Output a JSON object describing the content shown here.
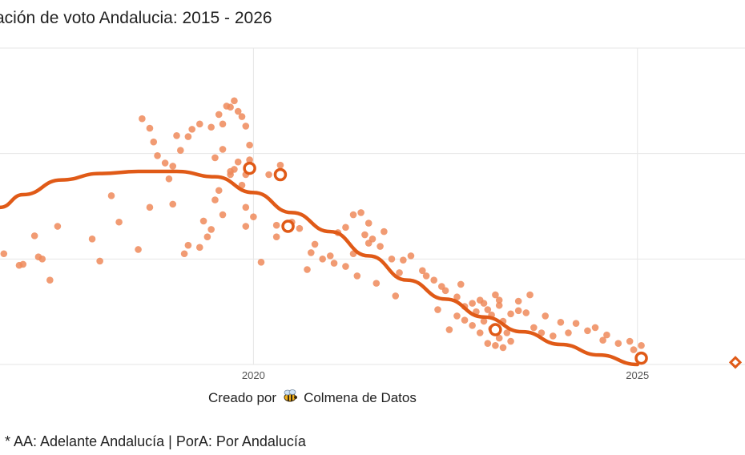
{
  "title": "ación de voto Andalucia: 2015 - 2026",
  "credit": {
    "prefix": "Creado por",
    "icon": "bee-icon",
    "name": "Colmena de Datos"
  },
  "footnote": "* AA: Adelante Andalucía | PorA: Por Andalucía",
  "colors": {
    "series": "#e05a17",
    "points": "#ee8a5a",
    "grid": "#e6e6e6"
  },
  "chart_data": {
    "type": "scatter",
    "x_tick_labels": [
      "2020",
      "2025"
    ],
    "xlim": [
      2016.7,
      2026.4
    ],
    "ylim": [
      0,
      30
    ],
    "grid": true,
    "series": [
      {
        "kind": "polls",
        "points": [
          [
            2016.75,
            10.5
          ],
          [
            2016.95,
            9.4
          ],
          [
            2017.15,
            12.2
          ],
          [
            2017.2,
            10.2
          ],
          [
            2017.0,
            9.5
          ],
          [
            2017.35,
            8.0
          ],
          [
            2017.25,
            10.0
          ],
          [
            2017.45,
            13.1
          ],
          [
            2017.9,
            11.9
          ],
          [
            2018.0,
            9.8
          ],
          [
            2018.15,
            16.0
          ],
          [
            2018.25,
            13.5
          ],
          [
            2018.5,
            10.9
          ],
          [
            2018.65,
            14.9
          ],
          [
            2018.9,
            17.6
          ],
          [
            2018.95,
            15.2
          ],
          [
            2019.1,
            10.5
          ],
          [
            2019.15,
            11.3
          ],
          [
            2019.3,
            11.1
          ],
          [
            2019.35,
            13.6
          ],
          [
            2019.4,
            12.1
          ],
          [
            2019.45,
            12.8
          ],
          [
            2018.7,
            21.1
          ],
          [
            2018.75,
            19.8
          ],
          [
            2018.85,
            19.1
          ],
          [
            2018.95,
            18.8
          ],
          [
            2019.05,
            20.3
          ],
          [
            2019.0,
            21.7
          ],
          [
            2019.15,
            21.6
          ],
          [
            2019.2,
            22.3
          ],
          [
            2019.3,
            22.8
          ],
          [
            2019.45,
            22.5
          ],
          [
            2018.55,
            23.3
          ],
          [
            2018.65,
            22.4
          ],
          [
            2019.55,
            23.7
          ],
          [
            2019.6,
            22.8
          ],
          [
            2019.65,
            24.5
          ],
          [
            2019.7,
            24.4
          ],
          [
            2019.75,
            25.0
          ],
          [
            2019.8,
            24.0
          ],
          [
            2019.85,
            23.5
          ],
          [
            2019.9,
            22.6
          ],
          [
            2019.95,
            20.8
          ],
          [
            2019.8,
            19.2
          ],
          [
            2019.7,
            18.3
          ],
          [
            2019.5,
            19.6
          ],
          [
            2019.75,
            18.5
          ],
          [
            2019.6,
            20.4
          ],
          [
            2019.9,
            18.0
          ],
          [
            2019.95,
            19.4
          ],
          [
            2019.7,
            18.0
          ],
          [
            2019.85,
            17.0
          ],
          [
            2019.55,
            16.5
          ],
          [
            2019.6,
            14.2
          ],
          [
            2020.0,
            14.0
          ],
          [
            2020.2,
            18.0
          ],
          [
            2020.35,
            18.9
          ],
          [
            2019.9,
            13.1
          ],
          [
            2020.3,
            12.1
          ],
          [
            2020.6,
            12.9
          ],
          [
            2019.5,
            15.6
          ],
          [
            2019.9,
            14.9
          ],
          [
            2020.5,
            13.5
          ],
          [
            2020.75,
            10.6
          ],
          [
            2020.9,
            10.0
          ],
          [
            2021.05,
            9.6
          ],
          [
            2021.2,
            9.3
          ],
          [
            2021.35,
            8.4
          ],
          [
            2021.6,
            7.7
          ],
          [
            2021.85,
            6.5
          ],
          [
            2021.9,
            8.7
          ],
          [
            2021.5,
            11.5
          ],
          [
            2020.1,
            9.7
          ],
          [
            2020.3,
            13.2
          ],
          [
            2021.0,
            10.3
          ],
          [
            2020.7,
            9.0
          ],
          [
            2021.3,
            10.5
          ],
          [
            2021.45,
            12.3
          ],
          [
            2021.55,
            11.9
          ],
          [
            2021.65,
            11.2
          ],
          [
            2021.7,
            12.6
          ],
          [
            2021.8,
            10.0
          ],
          [
            2022.05,
            10.3
          ],
          [
            2022.25,
            8.4
          ],
          [
            2022.5,
            7.0
          ],
          [
            2022.4,
            5.2
          ],
          [
            2022.55,
            3.3
          ],
          [
            2022.65,
            4.6
          ],
          [
            2022.75,
            4.2
          ],
          [
            2022.85,
            3.7
          ],
          [
            2023.0,
            5.8
          ],
          [
            2023.15,
            6.6
          ],
          [
            2023.05,
            5.2
          ],
          [
            2023.2,
            6.1
          ],
          [
            2023.35,
            4.8
          ],
          [
            2023.45,
            5.1
          ],
          [
            2023.55,
            4.9
          ],
          [
            2023.65,
            3.5
          ],
          [
            2023.75,
            3.0
          ],
          [
            2023.9,
            2.7
          ],
          [
            2024.1,
            3.0
          ],
          [
            2024.35,
            3.2
          ],
          [
            2024.55,
            2.3
          ],
          [
            2024.75,
            2.0
          ],
          [
            2024.95,
            1.4
          ],
          [
            2025.05,
            1.8
          ],
          [
            2022.85,
            5.8
          ],
          [
            2022.95,
            6.1
          ],
          [
            2023.0,
            4.1
          ],
          [
            2023.1,
            3.4
          ],
          [
            2023.2,
            2.5
          ],
          [
            2023.3,
            3.0
          ],
          [
            2022.75,
            5.5
          ],
          [
            2022.9,
            5.0
          ],
          [
            2023.1,
            4.7
          ],
          [
            2023.2,
            5.6
          ],
          [
            2023.25,
            4.1
          ],
          [
            2022.95,
            3.0
          ],
          [
            2023.05,
            2.0
          ],
          [
            2023.15,
            1.8
          ],
          [
            2023.25,
            1.6
          ],
          [
            2023.35,
            2.2
          ],
          [
            2021.1,
            12.5
          ],
          [
            2021.2,
            13.0
          ],
          [
            2021.3,
            14.2
          ],
          [
            2021.4,
            14.4
          ],
          [
            2021.5,
            13.4
          ],
          [
            2022.2,
            8.9
          ],
          [
            2022.35,
            8.0
          ],
          [
            2022.45,
            7.4
          ],
          [
            2020.8,
            11.4
          ],
          [
            2021.95,
            9.9
          ],
          [
            2022.65,
            6.4
          ],
          [
            2022.7,
            7.6
          ],
          [
            2023.45,
            6.0
          ],
          [
            2023.6,
            6.6
          ],
          [
            2023.8,
            4.6
          ],
          [
            2024.0,
            4.0
          ],
          [
            2024.2,
            3.9
          ],
          [
            2024.45,
            3.5
          ],
          [
            2024.6,
            2.8
          ],
          [
            2024.9,
            2.2
          ]
        ]
      },
      {
        "kind": "trend",
        "points": [
          [
            2016.7,
            14.9
          ],
          [
            2017.0,
            16.1
          ],
          [
            2017.5,
            17.5
          ],
          [
            2018.0,
            18.1
          ],
          [
            2018.5,
            18.3
          ],
          [
            2019.0,
            18.3
          ],
          [
            2019.5,
            17.8
          ],
          [
            2020.0,
            16.3
          ],
          [
            2020.5,
            14.4
          ],
          [
            2021.0,
            12.6
          ],
          [
            2021.5,
            10.3
          ],
          [
            2022.0,
            8.0
          ],
          [
            2022.5,
            6.2
          ],
          [
            2023.0,
            4.5
          ],
          [
            2023.5,
            3.1
          ],
          [
            2024.0,
            1.9
          ],
          [
            2024.5,
            0.9
          ],
          [
            2025.0,
            0.0
          ]
        ]
      },
      {
        "kind": "election",
        "points": [
          [
            2019.95,
            18.6
          ],
          [
            2020.35,
            18.0
          ],
          [
            2020.45,
            13.1
          ],
          [
            2023.15,
            3.3
          ],
          [
            2025.05,
            0.6
          ]
        ]
      },
      {
        "kind": "projection",
        "points": [
          [
            2026.35,
            0.2
          ]
        ]
      }
    ]
  }
}
